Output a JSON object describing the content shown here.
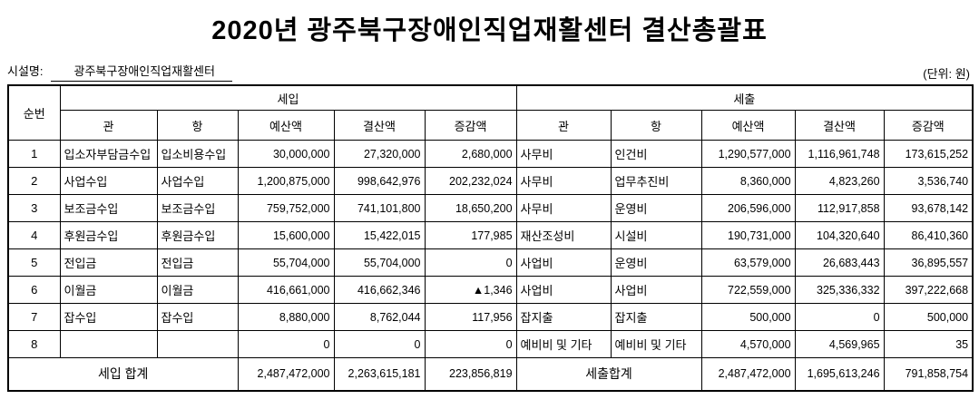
{
  "title": "2020년  광주북구장애인직업재활센터  결산총괄표",
  "meta": {
    "facility_label": "시설명:",
    "facility_name": "광주북구장애인직업재활센터",
    "unit_label": "(단위: 원)"
  },
  "table": {
    "headers": {
      "seq": "순번",
      "revenue_group": "세입",
      "expenditure_group": "세출",
      "sub": [
        "관",
        "항",
        "예산액",
        "결산액",
        "증감액"
      ]
    },
    "rows": [
      {
        "seq": "1",
        "revenue": [
          "입소자부담금수입",
          "입소비용수입",
          "30,000,000",
          "27,320,000",
          "2,680,000"
        ],
        "expenditure": [
          "사무비",
          "인건비",
          "1,290,577,000",
          "1,116,961,748",
          "173,615,252"
        ]
      },
      {
        "seq": "2",
        "revenue": [
          "사업수입",
          "사업수입",
          "1,200,875,000",
          "998,642,976",
          "202,232,024"
        ],
        "expenditure": [
          "사무비",
          "업무추진비",
          "8,360,000",
          "4,823,260",
          "3,536,740"
        ]
      },
      {
        "seq": "3",
        "revenue": [
          "보조금수입",
          "보조금수입",
          "759,752,000",
          "741,101,800",
          "18,650,200"
        ],
        "expenditure": [
          "사무비",
          "운영비",
          "206,596,000",
          "112,917,858",
          "93,678,142"
        ]
      },
      {
        "seq": "4",
        "revenue": [
          "후원금수입",
          "후원금수입",
          "15,600,000",
          "15,422,015",
          "177,985"
        ],
        "expenditure": [
          "재산조성비",
          "시설비",
          "190,731,000",
          "104,320,640",
          "86,410,360"
        ]
      },
      {
        "seq": "5",
        "revenue": [
          "전입금",
          "전입금",
          "55,704,000",
          "55,704,000",
          "0"
        ],
        "expenditure": [
          "사업비",
          "운영비",
          "63,579,000",
          "26,683,443",
          "36,895,557"
        ]
      },
      {
        "seq": "6",
        "revenue": [
          "이월금",
          "이월금",
          "416,661,000",
          "416,662,346",
          "▲1,346"
        ],
        "expenditure": [
          "사업비",
          "사업비",
          "722,559,000",
          "325,336,332",
          "397,222,668"
        ]
      },
      {
        "seq": "7",
        "revenue": [
          "잡수입",
          "잡수입",
          "8,880,000",
          "8,762,044",
          "117,956"
        ],
        "expenditure": [
          "잡지출",
          "잡지출",
          "500,000",
          "0",
          "500,000"
        ]
      },
      {
        "seq": "8",
        "revenue": [
          "",
          "",
          "0",
          "0",
          "0"
        ],
        "expenditure": [
          "예비비 및 기타",
          "예비비 및 기타",
          "4,570,000",
          "4,569,965",
          "35"
        ]
      }
    ],
    "totals": {
      "revenue_label": "세입 합계",
      "revenue": [
        "2,487,472,000",
        "2,263,615,181",
        "223,856,819"
      ],
      "expenditure_label": "세출합계",
      "expenditure": [
        "2,487,472,000",
        "1,695,613,246",
        "791,858,754"
      ]
    }
  }
}
